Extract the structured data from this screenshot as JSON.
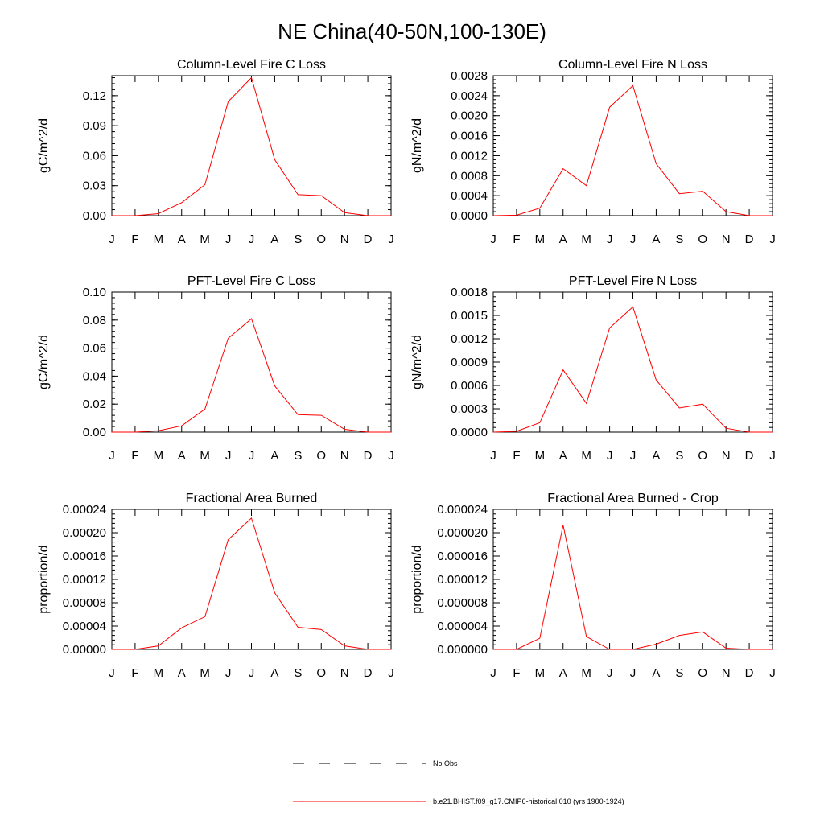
{
  "figure": {
    "title": "NE China(40-50N,100-130E)"
  },
  "legend": {
    "entries": [
      {
        "label": "No Obs",
        "style": "dashed",
        "color": "#000000"
      },
      {
        "label": "b.e21.BHIST.f09_g17.CMIP6-historical.010 (yrs 1900-1924)",
        "style": "solid",
        "color": "#ff0000"
      }
    ]
  },
  "chart_data": [
    {
      "type": "line",
      "title": "Column-Level Fire C Loss",
      "xlabel": "",
      "ylabel": "gC/m^2/d",
      "categories": [
        "J",
        "F",
        "M",
        "A",
        "M",
        "J",
        "J",
        "A",
        "S",
        "O",
        "N",
        "D",
        "J"
      ],
      "ylim": [
        0,
        0.14
      ],
      "yticks": [
        "0.00",
        "0.03",
        "0.06",
        "0.09",
        "0.12"
      ],
      "ytick_values": [
        0,
        0.03,
        0.06,
        0.09,
        0.12
      ],
      "series": [
        {
          "color": "#ff0000",
          "values": [
            0,
            0,
            0.002,
            0.013,
            0.031,
            0.114,
            0.138,
            0.056,
            0.021,
            0.02,
            0.003,
            0,
            0
          ]
        }
      ]
    },
    {
      "type": "line",
      "title": "Column-Level Fire N Loss",
      "xlabel": "",
      "ylabel": "gN/m^2/d",
      "categories": [
        "J",
        "F",
        "M",
        "A",
        "M",
        "J",
        "J",
        "A",
        "S",
        "O",
        "N",
        "D",
        "J"
      ],
      "ylim": [
        0,
        0.0028
      ],
      "yticks": [
        "0.0000",
        "0.0004",
        "0.0008",
        "0.0012",
        "0.0016",
        "0.0020",
        "0.0024",
        "0.0028"
      ],
      "ytick_values": [
        0,
        0.0004,
        0.0008,
        0.0012,
        0.0016,
        0.002,
        0.0024,
        0.0028
      ],
      "series": [
        {
          "color": "#ff0000",
          "values": [
            0,
            1e-05,
            0.00015,
            0.00094,
            0.0006,
            0.00217,
            0.0026,
            0.00104,
            0.00044,
            0.00049,
            8e-05,
            0,
            0
          ]
        }
      ]
    },
    {
      "type": "line",
      "title": "PFT-Level Fire C Loss",
      "xlabel": "",
      "ylabel": "gC/m^2/d",
      "categories": [
        "J",
        "F",
        "M",
        "A",
        "M",
        "J",
        "J",
        "A",
        "S",
        "O",
        "N",
        "D",
        "J"
      ],
      "ylim": [
        0,
        0.1
      ],
      "yticks": [
        "0.00",
        "0.02",
        "0.04",
        "0.06",
        "0.08",
        "0.10"
      ],
      "ytick_values": [
        0,
        0.02,
        0.04,
        0.06,
        0.08,
        0.1
      ],
      "series": [
        {
          "color": "#ff0000",
          "values": [
            0,
            0,
            0.001,
            0.0045,
            0.0165,
            0.067,
            0.081,
            0.033,
            0.0125,
            0.012,
            0.002,
            0,
            0
          ]
        }
      ]
    },
    {
      "type": "line",
      "title": "PFT-Level Fire N Loss",
      "xlabel": "",
      "ylabel": "gN/m^2/d",
      "categories": [
        "J",
        "F",
        "M",
        "A",
        "M",
        "J",
        "J",
        "A",
        "S",
        "O",
        "N",
        "D",
        "J"
      ],
      "ylim": [
        0,
        0.0018
      ],
      "yticks": [
        "0.0000",
        "0.0003",
        "0.0006",
        "0.0009",
        "0.0012",
        "0.0015",
        "0.0018"
      ],
      "ytick_values": [
        0,
        0.0003,
        0.0006,
        0.0009,
        0.0012,
        0.0015,
        0.0018
      ],
      "series": [
        {
          "color": "#ff0000",
          "values": [
            0,
            1e-05,
            0.00012,
            0.0008,
            0.00037,
            0.00134,
            0.00161,
            0.00067,
            0.00031,
            0.00036,
            5e-05,
            0,
            0
          ]
        }
      ]
    },
    {
      "type": "line",
      "title": "Fractional Area Burned",
      "xlabel": "",
      "ylabel": "proportion/d",
      "categories": [
        "J",
        "F",
        "M",
        "A",
        "M",
        "J",
        "J",
        "A",
        "S",
        "O",
        "N",
        "D",
        "J"
      ],
      "ylim": [
        0,
        0.00024
      ],
      "yticks": [
        "0.00000",
        "0.00004",
        "0.00008",
        "0.00012",
        "0.00016",
        "0.00020",
        "0.00024"
      ],
      "ytick_values": [
        0,
        4e-05,
        8e-05,
        0.00012,
        0.00016,
        0.0002,
        0.00024
      ],
      "series": [
        {
          "color": "#ff0000",
          "values": [
            0,
            0,
            6e-06,
            3.7e-05,
            5.6e-05,
            0.000188,
            0.000225,
            9.7e-05,
            3.8e-05,
            3.4e-05,
            6e-06,
            0,
            0
          ]
        }
      ]
    },
    {
      "type": "line",
      "title": "Fractional Area Burned - Crop",
      "xlabel": "",
      "ylabel": "proportion/d",
      "categories": [
        "J",
        "F",
        "M",
        "A",
        "M",
        "J",
        "J",
        "A",
        "S",
        "O",
        "N",
        "D",
        "J"
      ],
      "ylim": [
        0,
        2.4e-05
      ],
      "yticks": [
        "0.000000",
        "0.000004",
        "0.000008",
        "0.000012",
        "0.000016",
        "0.000020",
        "0.000024"
      ],
      "ytick_values": [
        0,
        4e-06,
        8e-06,
        1.2e-05,
        1.6e-05,
        2e-05,
        2.4e-05
      ],
      "series": [
        {
          "color": "#ff0000",
          "values": [
            0,
            0,
            1.9e-06,
            2.13e-05,
            2.2e-06,
            0,
            0,
            9e-07,
            2.4e-06,
            3e-06,
            2e-07,
            0,
            0
          ]
        }
      ]
    }
  ]
}
